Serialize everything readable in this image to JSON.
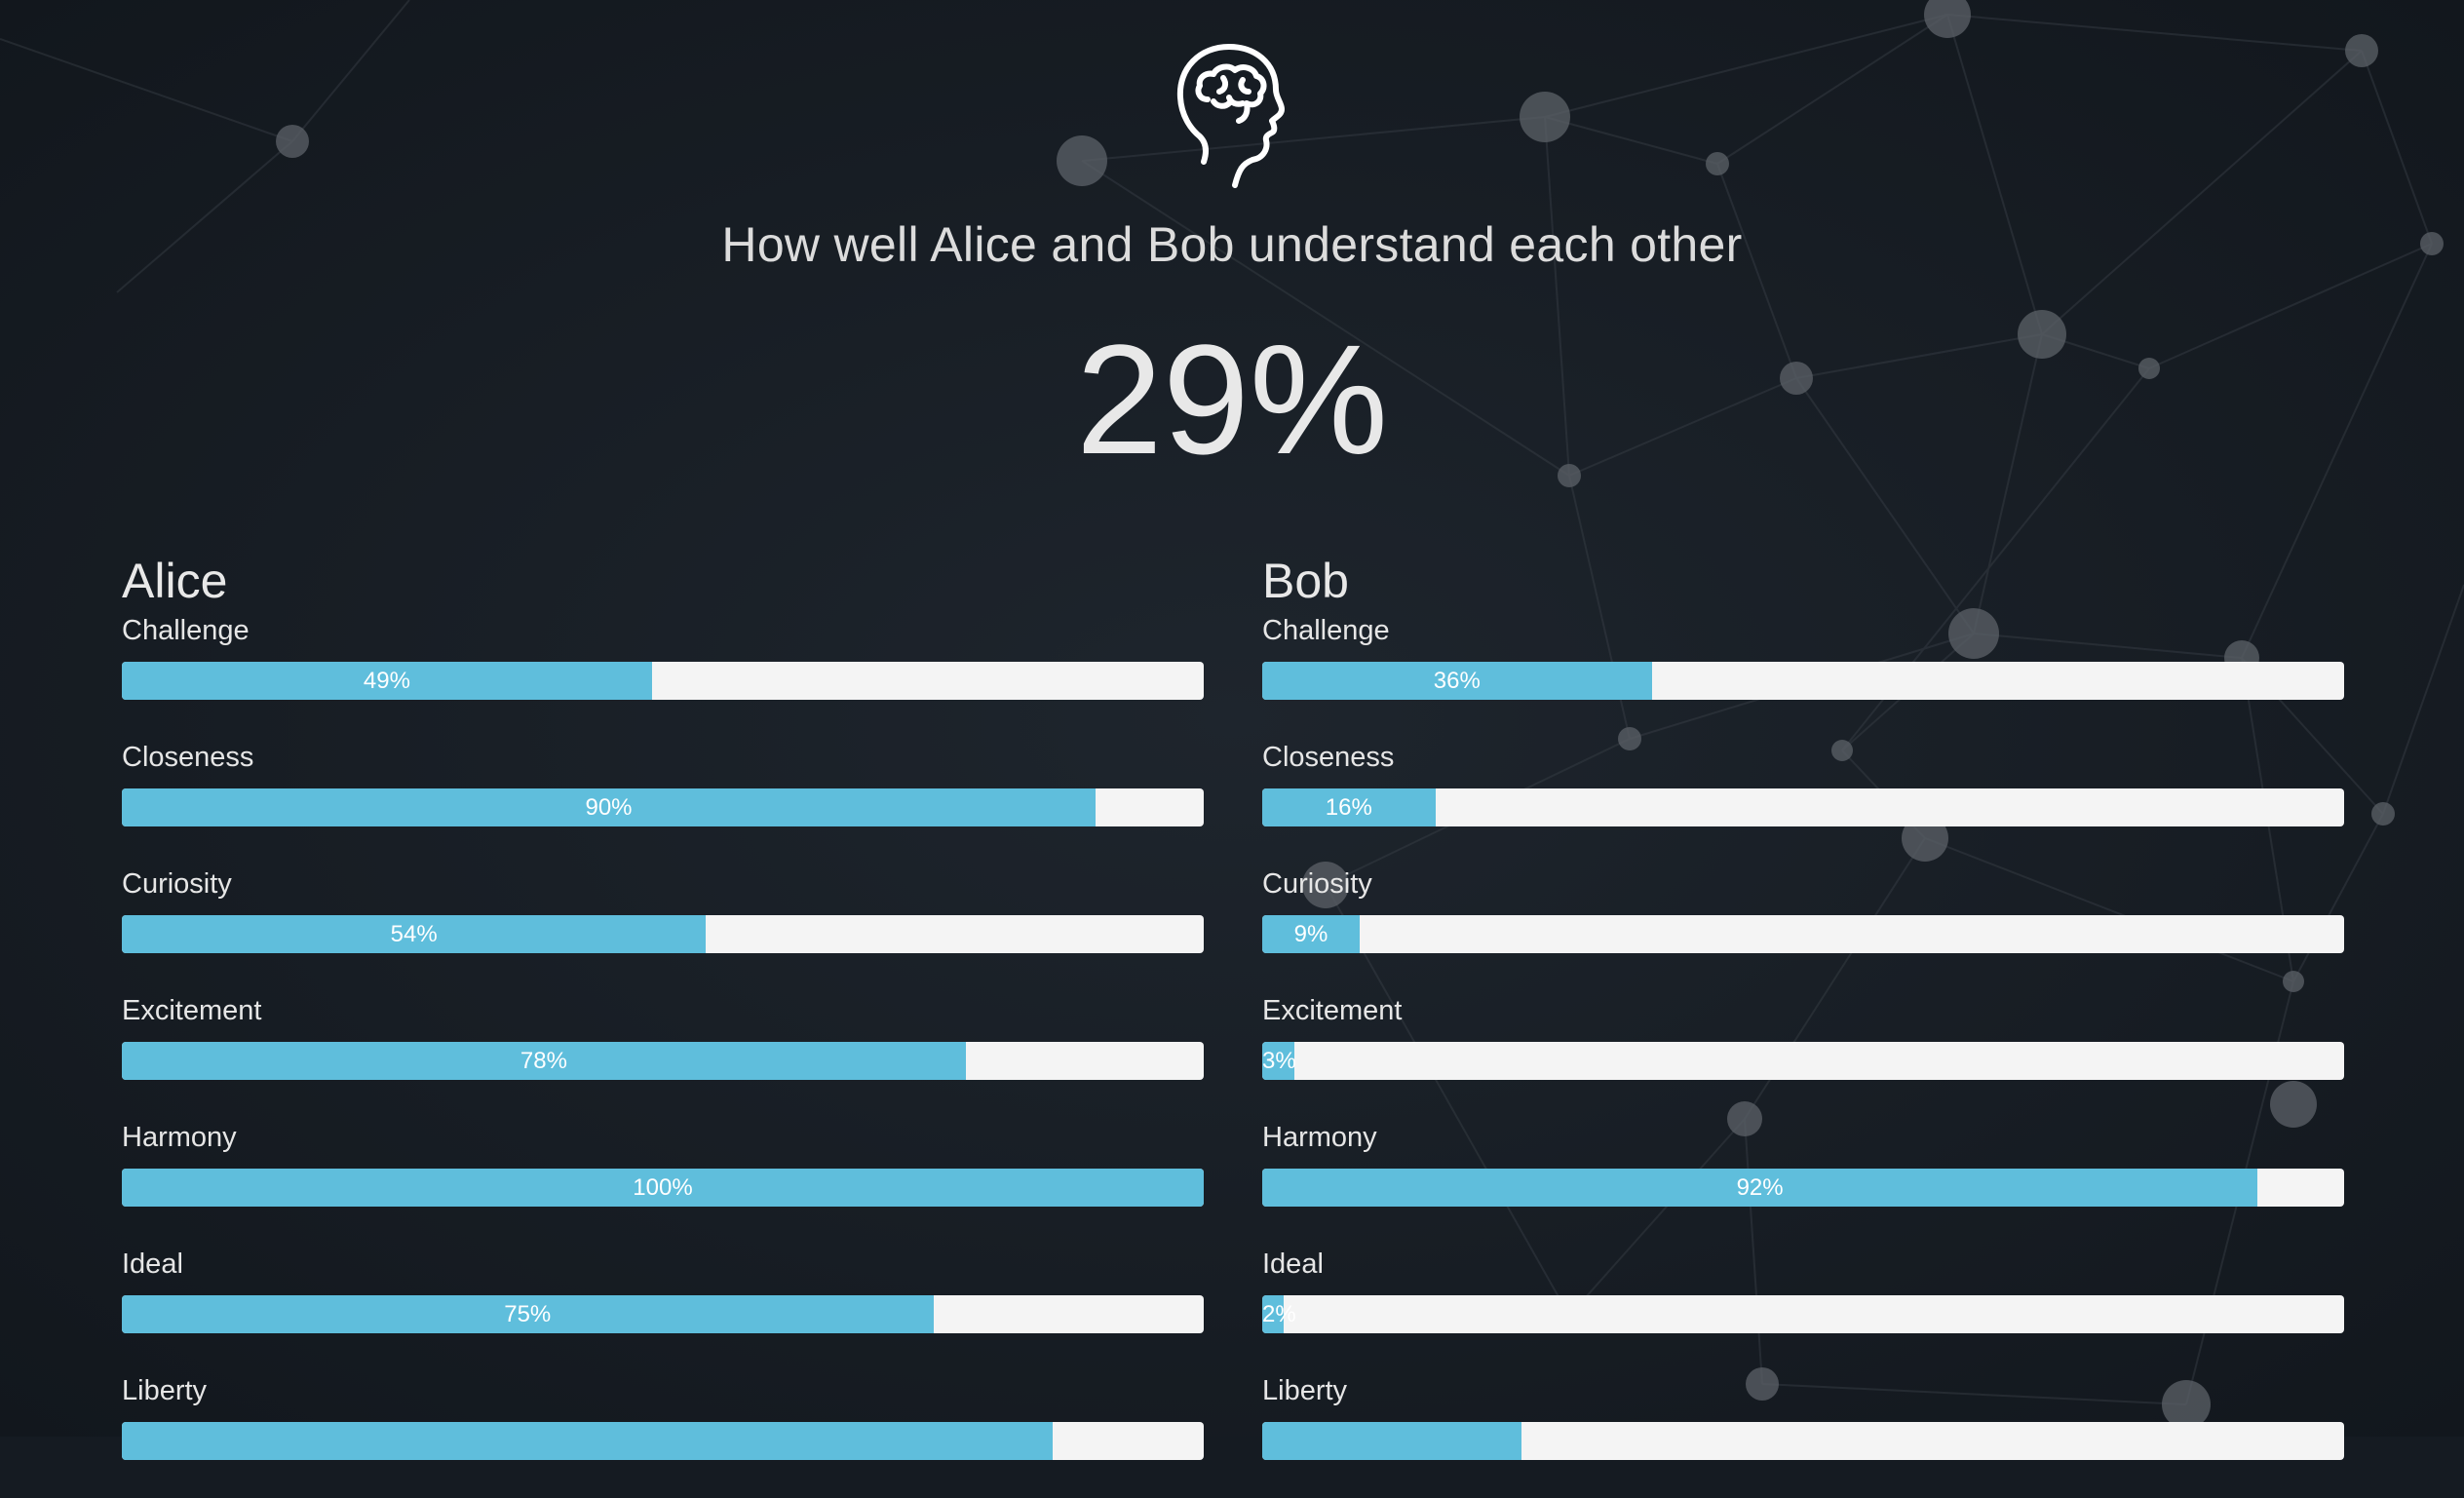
{
  "title": "How well Alice and Bob understand each other",
  "overall_score": "29%",
  "icons": {
    "header": "brain-head-icon"
  },
  "colors": {
    "background": "#151b22",
    "bar_fill": "#5fbedc",
    "bar_track": "#f4f4f4",
    "text": "#e6e6e6"
  },
  "people": [
    {
      "name": "Alice",
      "metrics": [
        {
          "label": "Challenge",
          "value": 49,
          "text": "49%"
        },
        {
          "label": "Closeness",
          "value": 90,
          "text": "90%"
        },
        {
          "label": "Curiosity",
          "value": 54,
          "text": "54%"
        },
        {
          "label": "Excitement",
          "value": 78,
          "text": "78%"
        },
        {
          "label": "Harmony",
          "value": 100,
          "text": "100%"
        },
        {
          "label": "Ideal",
          "value": 75,
          "text": "75%"
        },
        {
          "label": "Liberty",
          "value": 86,
          "text": ""
        }
      ]
    },
    {
      "name": "Bob",
      "metrics": [
        {
          "label": "Challenge",
          "value": 36,
          "text": "36%"
        },
        {
          "label": "Closeness",
          "value": 16,
          "text": "16%"
        },
        {
          "label": "Curiosity",
          "value": 9,
          "text": "9%"
        },
        {
          "label": "Excitement",
          "value": 3,
          "text": "3%"
        },
        {
          "label": "Harmony",
          "value": 92,
          "text": "92%"
        },
        {
          "label": "Ideal",
          "value": 2,
          "text": "2%"
        },
        {
          "label": "Liberty",
          "value": 24,
          "text": ""
        }
      ]
    }
  ]
}
